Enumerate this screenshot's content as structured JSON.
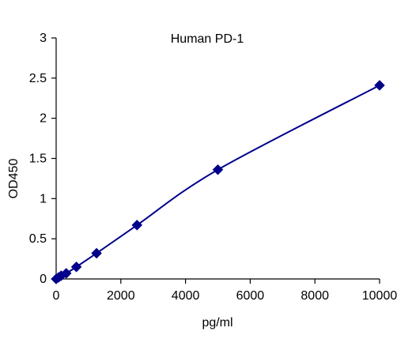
{
  "chart_data": {
    "type": "scatter",
    "title": "Human PD-1",
    "xlabel": "pg/ml",
    "ylabel": "OD450",
    "xlim": [
      0,
      10000
    ],
    "ylim": [
      0,
      3
    ],
    "xticks": [
      0,
      2000,
      4000,
      6000,
      8000,
      10000
    ],
    "yticks": [
      0,
      0.5,
      1,
      1.5,
      2,
      2.5,
      3
    ],
    "xtick_labels": [
      "0",
      "2000",
      "4000",
      "6000",
      "8000",
      "10000"
    ],
    "ytick_labels": [
      "0",
      "0.5",
      "1",
      "1.5",
      "2",
      "2.5",
      "3"
    ],
    "grid": false,
    "legend": "none",
    "marker": "diamond",
    "series": [
      {
        "color": "#00008b",
        "x": [
          0,
          78,
          156,
          312,
          625,
          1250,
          2500,
          5000,
          10000
        ],
        "y": [
          0.0,
          0.02,
          0.04,
          0.07,
          0.15,
          0.32,
          0.67,
          1.36,
          2.41
        ],
        "fit": "smooth"
      }
    ]
  }
}
